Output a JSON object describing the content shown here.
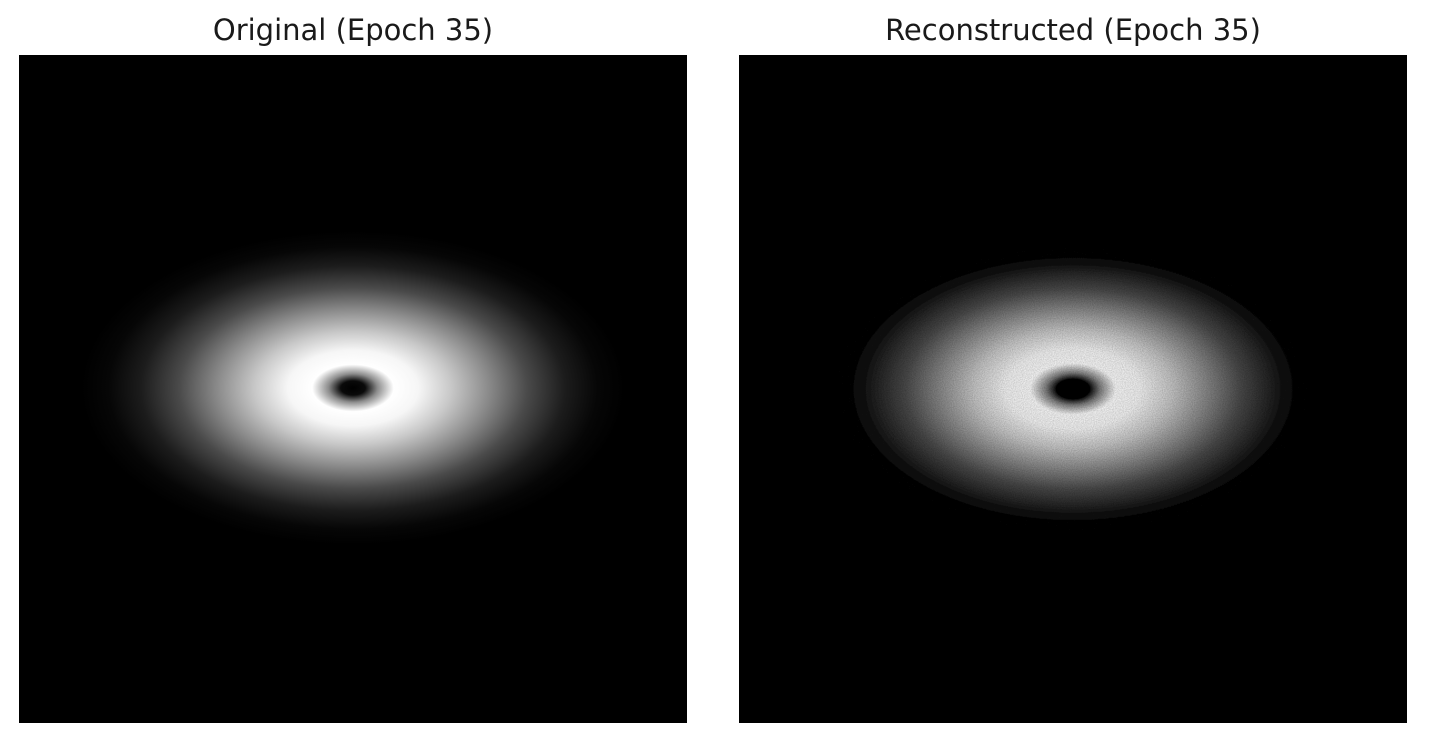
{
  "panels": [
    {
      "title": "Original (Epoch 35)",
      "image": "sharp-elliptical-donut-ring"
    },
    {
      "title": "Reconstructed (Epoch 35)",
      "image": "noisy-elliptical-donut-ring"
    }
  ],
  "colors": {
    "background": "#ffffff",
    "image_background": "#000000",
    "ring": "#ffffff",
    "title_text": "#1a1a1a"
  }
}
